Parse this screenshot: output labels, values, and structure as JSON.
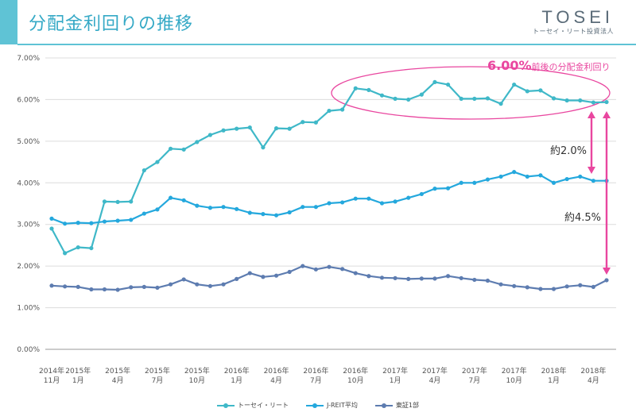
{
  "header": {
    "title": "分配金利回りの推移",
    "logo_text": "TOSEI",
    "logo_subtext": "トーセイ・リート投資法人"
  },
  "colors": {
    "tosei": "#3fb8c8",
    "jreit": "#24a8dd",
    "tosho": "#5d7cb0",
    "accent": "#e9469f",
    "header": "#5fc3d5"
  },
  "annotations": {
    "main_value": "6.00%",
    "main_text": "前後の分配金利回り",
    "spread_jreit": "約2.0%",
    "spread_tosho": "約4.5%"
  },
  "chart_data": {
    "type": "line",
    "y_unit": "%",
    "ylim": [
      0,
      7
    ],
    "y_ticks": [
      "0.00%",
      "1.00%",
      "2.00%",
      "3.00%",
      "4.00%",
      "5.00%",
      "6.00%",
      "7.00%"
    ],
    "x_labels": [
      {
        "year": "2014年",
        "month": "11月"
      },
      {
        "year": "2015年",
        "month": "1月"
      },
      {
        "year": "2015年",
        "month": "4月"
      },
      {
        "year": "2015年",
        "month": "7月"
      },
      {
        "year": "2015年",
        "month": "10月"
      },
      {
        "year": "2016年",
        "month": "1月"
      },
      {
        "year": "2016年",
        "month": "4月"
      },
      {
        "year": "2016年",
        "month": "7月"
      },
      {
        "year": "2016年",
        "month": "10月"
      },
      {
        "year": "2017年",
        "month": "1月"
      },
      {
        "year": "2017年",
        "month": "4月"
      },
      {
        "year": "2017年",
        "month": "7月"
      },
      {
        "year": "2017年",
        "month": "10月"
      },
      {
        "year": "2018年",
        "month": "1月"
      },
      {
        "year": "2018年",
        "month": "4月"
      }
    ],
    "series": [
      {
        "name": "トーセイ・リート",
        "color": "#3fb8c8",
        "values": [
          2.9,
          2.31,
          2.45,
          2.43,
          3.55,
          3.54,
          3.55,
          4.3,
          4.5,
          4.82,
          4.8,
          4.98,
          5.15,
          5.26,
          5.3,
          5.33,
          4.85,
          5.31,
          5.3,
          5.46,
          5.45,
          5.73,
          5.76,
          6.27,
          6.23,
          6.1,
          6.02,
          6.0,
          6.12,
          6.42,
          6.36,
          6.02,
          6.02,
          6.03,
          5.9,
          6.36,
          6.2,
          6.22,
          6.03,
          5.98,
          5.98,
          5.93,
          5.94
        ]
      },
      {
        "name": "J-REIT平均",
        "color": "#24a8dd",
        "values": [
          3.14,
          3.02,
          3.04,
          3.03,
          3.07,
          3.09,
          3.11,
          3.26,
          3.36,
          3.64,
          3.58,
          3.45,
          3.4,
          3.42,
          3.37,
          3.28,
          3.25,
          3.22,
          3.29,
          3.42,
          3.42,
          3.51,
          3.53,
          3.62,
          3.62,
          3.51,
          3.55,
          3.64,
          3.73,
          3.86,
          3.87,
          4.0,
          4.0,
          4.08,
          4.15,
          4.26,
          4.15,
          4.18,
          4.0,
          4.09,
          4.15,
          4.05,
          4.05
        ]
      },
      {
        "name": "東証1部",
        "color": "#5d7cb0",
        "values": [
          1.53,
          1.51,
          1.5,
          1.44,
          1.44,
          1.43,
          1.49,
          1.5,
          1.48,
          1.56,
          1.68,
          1.56,
          1.52,
          1.56,
          1.69,
          1.83,
          1.74,
          1.77,
          1.86,
          2.0,
          1.92,
          1.98,
          1.93,
          1.83,
          1.76,
          1.72,
          1.71,
          1.69,
          1.7,
          1.7,
          1.76,
          1.71,
          1.67,
          1.65,
          1.56,
          1.52,
          1.49,
          1.45,
          1.45,
          1.51,
          1.54,
          1.5,
          1.66
        ]
      }
    ]
  }
}
